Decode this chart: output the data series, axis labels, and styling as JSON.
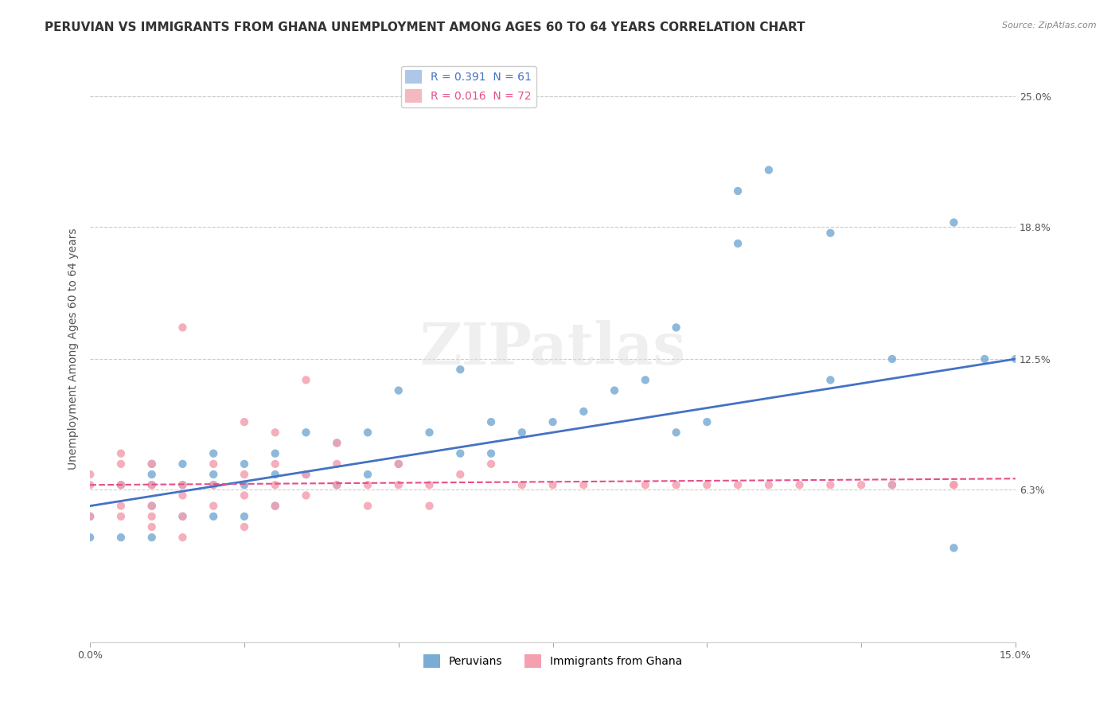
{
  "title": "PERUVIAN VS IMMIGRANTS FROM GHANA UNEMPLOYMENT AMONG AGES 60 TO 64 YEARS CORRELATION CHART",
  "source": "Source: ZipAtlas.com",
  "xlabel": "",
  "ylabel": "Unemployment Among Ages 60 to 64 years",
  "xlim": [
    0.0,
    0.15
  ],
  "ylim": [
    -0.01,
    0.27
  ],
  "yticks": [
    0.063,
    0.125,
    0.188,
    0.25
  ],
  "ytick_labels": [
    "6.3%",
    "12.5%",
    "18.8%",
    "25.0%"
  ],
  "xticks": [
    0.0,
    0.025,
    0.05,
    0.075,
    0.1,
    0.125,
    0.15
  ],
  "xtick_labels": [
    "0.0%",
    "",
    "",
    "",
    "",
    "",
    "15.0%"
  ],
  "legend1_label": "R = 0.391  N = 61",
  "legend2_label": "R = 0.016  N = 72",
  "legend1_color": "#aec6e8",
  "legend2_color": "#f4b8c1",
  "watermark": "ZIPatlas",
  "blue_scatter_x": [
    0.0,
    0.0,
    0.005,
    0.005,
    0.01,
    0.01,
    0.01,
    0.01,
    0.01,
    0.015,
    0.015,
    0.015,
    0.02,
    0.02,
    0.02,
    0.02,
    0.025,
    0.025,
    0.025,
    0.03,
    0.03,
    0.03,
    0.035,
    0.035,
    0.04,
    0.04,
    0.045,
    0.045,
    0.05,
    0.05,
    0.055,
    0.06,
    0.06,
    0.065,
    0.065,
    0.07,
    0.075,
    0.08,
    0.085,
    0.09,
    0.095,
    0.095,
    0.1,
    0.105,
    0.105,
    0.11,
    0.12,
    0.12,
    0.13,
    0.13,
    0.14,
    0.14,
    0.145,
    0.15
  ],
  "blue_scatter_y": [
    0.04,
    0.05,
    0.04,
    0.065,
    0.04,
    0.055,
    0.065,
    0.07,
    0.075,
    0.05,
    0.065,
    0.075,
    0.05,
    0.065,
    0.07,
    0.08,
    0.05,
    0.065,
    0.075,
    0.055,
    0.07,
    0.08,
    0.07,
    0.09,
    0.065,
    0.085,
    0.07,
    0.09,
    0.075,
    0.11,
    0.09,
    0.08,
    0.12,
    0.08,
    0.095,
    0.09,
    0.095,
    0.1,
    0.11,
    0.115,
    0.09,
    0.14,
    0.095,
    0.18,
    0.205,
    0.215,
    0.115,
    0.185,
    0.125,
    0.065,
    0.035,
    0.19,
    0.125,
    0.125
  ],
  "pink_scatter_x": [
    0.0,
    0.0,
    0.0,
    0.005,
    0.005,
    0.005,
    0.005,
    0.005,
    0.01,
    0.01,
    0.01,
    0.01,
    0.01,
    0.015,
    0.015,
    0.015,
    0.015,
    0.015,
    0.02,
    0.02,
    0.02,
    0.025,
    0.025,
    0.025,
    0.025,
    0.03,
    0.03,
    0.03,
    0.03,
    0.035,
    0.035,
    0.035,
    0.04,
    0.04,
    0.04,
    0.045,
    0.045,
    0.05,
    0.05,
    0.055,
    0.055,
    0.06,
    0.065,
    0.07,
    0.075,
    0.08,
    0.09,
    0.095,
    0.1,
    0.105,
    0.11,
    0.115,
    0.12,
    0.125,
    0.13,
    0.14,
    0.14
  ],
  "pink_scatter_y": [
    0.05,
    0.065,
    0.07,
    0.05,
    0.055,
    0.065,
    0.075,
    0.08,
    0.045,
    0.05,
    0.055,
    0.065,
    0.075,
    0.04,
    0.05,
    0.06,
    0.065,
    0.14,
    0.055,
    0.065,
    0.075,
    0.045,
    0.06,
    0.07,
    0.095,
    0.055,
    0.065,
    0.075,
    0.09,
    0.06,
    0.07,
    0.115,
    0.065,
    0.075,
    0.085,
    0.055,
    0.065,
    0.065,
    0.075,
    0.055,
    0.065,
    0.07,
    0.075,
    0.065,
    0.065,
    0.065,
    0.065,
    0.065,
    0.065,
    0.065,
    0.065,
    0.065,
    0.065,
    0.065,
    0.065,
    0.065,
    0.065
  ],
  "blue_line_x": [
    0.0,
    0.15
  ],
  "blue_line_y": [
    0.055,
    0.125
  ],
  "pink_line_x": [
    0.0,
    0.15
  ],
  "pink_line_y": [
    0.065,
    0.068
  ],
  "blue_line_color": "#4472c4",
  "pink_line_color": "#e84d8a",
  "blue_dot_color": "#7aadd4",
  "pink_dot_color": "#f4a0b0",
  "grid_color": "#cccccc",
  "background_color": "#ffffff",
  "title_fontsize": 11,
  "axis_label_fontsize": 10,
  "tick_fontsize": 9,
  "legend_fontsize": 10
}
